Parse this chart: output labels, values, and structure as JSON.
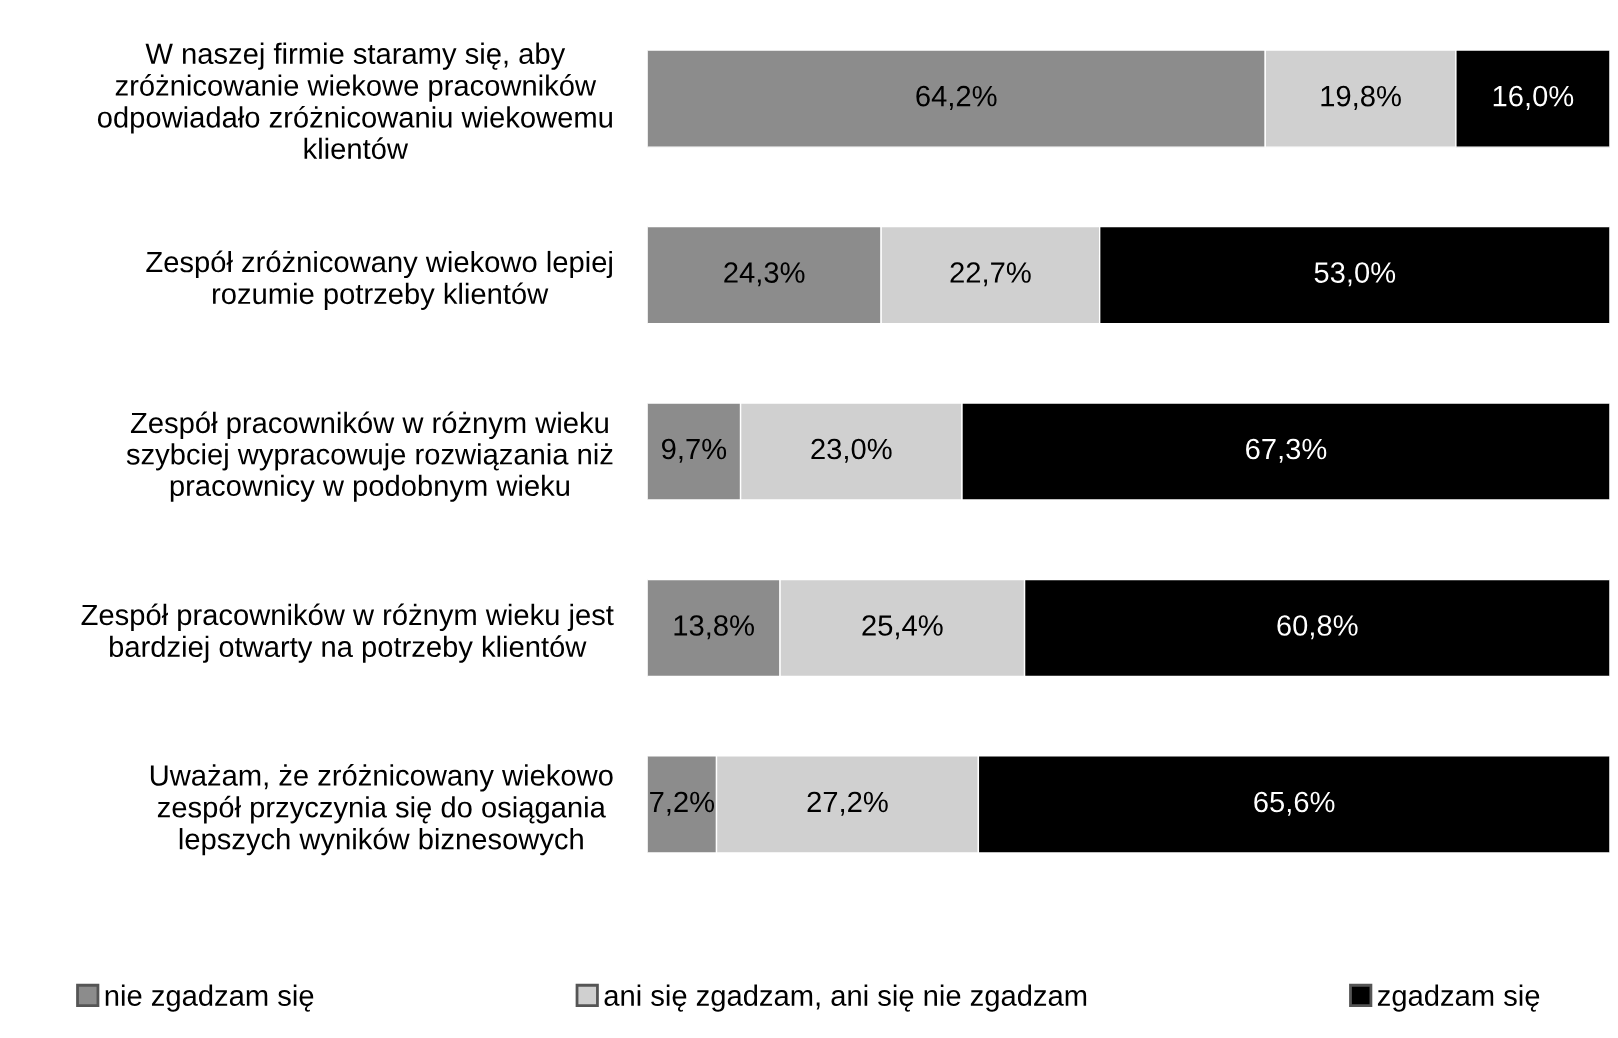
{
  "chart_data": {
    "type": "bar",
    "orientation": "horizontal",
    "stacked": true,
    "legend": "bottom",
    "grid": false,
    "categories": [
      "W naszej firmie staramy się, aby\nzróżnicowanie wiekowe pracowników\nodpowiadało zróżnicowaniu wiekowemu\nklientów",
      "Zespół zróżnicowany wiekowo lepiej\nrozumie potrzeby klientów",
      "Zespół pracowników w różnym wieku\nszybciej wypracowuje rozwiązania niż\npracownicy w podobnym wieku",
      "Zespół pracowników w różnym wieku jest\nbardziej otwarty na potrzeby klientów",
      "Uważam, że zróżnicowany wiekowo\nzespół przyczynia się do osiągania\nlepszych wyników biznesowych"
    ],
    "series": [
      {
        "name": "nie zgadzam się",
        "color": "#8c8c8c",
        "values": [
          64.2,
          24.3,
          9.7,
          13.8,
          7.2
        ],
        "value_labels": [
          "64,2%",
          "24,3%",
          "9,7%",
          "13,8%",
          "7,2%"
        ]
      },
      {
        "name": "ani się zgadzam, ani się nie zgadzam",
        "color": "#d0d0d0",
        "values": [
          19.8,
          22.7,
          23.0,
          25.4,
          27.2
        ],
        "value_labels": [
          "19,8%",
          "22,7%",
          "23,0%",
          "25,4%",
          "27,2%"
        ]
      },
      {
        "name": "zgadzam się",
        "color": "#000000",
        "values": [
          16.0,
          53.0,
          67.3,
          60.8,
          65.6
        ],
        "value_labels": [
          "16,0%",
          "53,0%",
          "67,3%",
          "60,8%",
          "65,6%"
        ]
      }
    ]
  }
}
